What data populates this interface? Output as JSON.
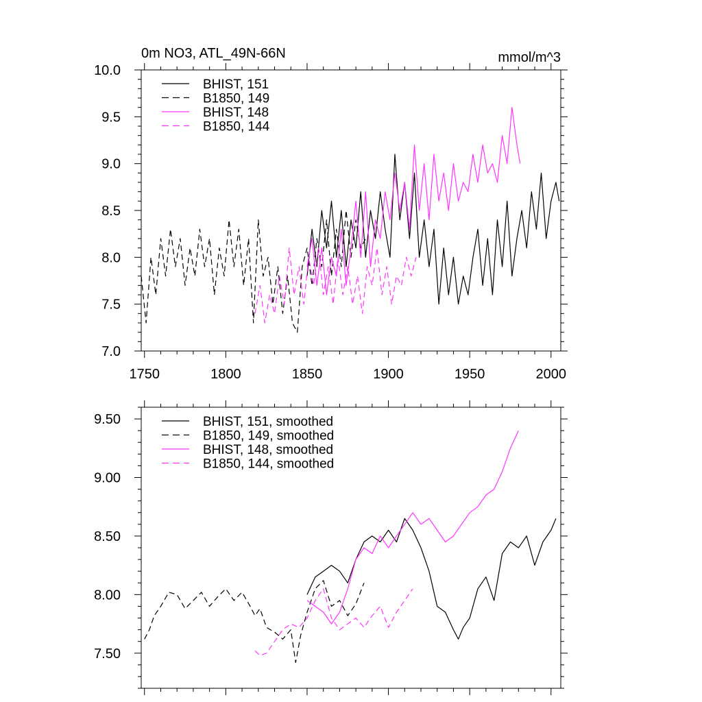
{
  "chart_data": [
    {
      "type": "line",
      "title": "0m NO3, ATL_49N-66N",
      "units": "mmol/m^3",
      "xlabel": "",
      "ylabel": "",
      "xlim": [
        1748,
        2006
      ],
      "ylim": [
        7.0,
        10.0
      ],
      "xticks": [
        {
          "v": 1750,
          "label": "1750"
        },
        {
          "v": 1800,
          "label": "1800"
        },
        {
          "v": 1850,
          "label": "1850"
        },
        {
          "v": 1900,
          "label": "1900"
        },
        {
          "v": 1950,
          "label": "1950"
        },
        {
          "v": 2000,
          "label": "2000"
        }
      ],
      "yticks": [
        {
          "v": 7.0,
          "label": "7.0"
        },
        {
          "v": 7.5,
          "label": "7.5"
        },
        {
          "v": 8.0,
          "label": "8.0"
        },
        {
          "v": 8.5,
          "label": "8.5"
        },
        {
          "v": 9.0,
          "label": "9.0"
        },
        {
          "v": 9.5,
          "label": "9.5"
        },
        {
          "v": 10.0,
          "label": "10.0"
        }
      ],
      "legend_position": "top-left",
      "grid": false,
      "series": [
        {
          "name": "BHIST, 151",
          "color": "#000000",
          "dash": "solid",
          "x": [
            1850,
            1853,
            1856,
            1859,
            1862,
            1865,
            1868,
            1871,
            1874,
            1877,
            1880,
            1883,
            1886,
            1889,
            1892,
            1895,
            1898,
            1901,
            1904,
            1907,
            1910,
            1913,
            1916,
            1919,
            1922,
            1925,
            1928,
            1931,
            1934,
            1937,
            1940,
            1943,
            1946,
            1949,
            1952,
            1955,
            1958,
            1961,
            1964,
            1967,
            1970,
            1973,
            1976,
            1979,
            1982,
            1985,
            1988,
            1991,
            1994,
            1997,
            2000,
            2003,
            2005
          ],
          "y": [
            7.8,
            8.3,
            7.9,
            8.5,
            8.1,
            8.6,
            8.0,
            8.5,
            7.9,
            8.4,
            8.1,
            8.7,
            8.0,
            8.5,
            8.2,
            8.7,
            8.3,
            8.0,
            9.1,
            8.4,
            8.8,
            8.2,
            8.9,
            8.0,
            8.4,
            7.9,
            8.3,
            7.5,
            8.1,
            7.6,
            8.0,
            7.5,
            7.8,
            7.6,
            8.0,
            8.3,
            7.7,
            8.2,
            7.6,
            8.4,
            7.9,
            8.6,
            7.8,
            8.2,
            8.5,
            8.1,
            8.7,
            8.3,
            8.9,
            8.2,
            8.6,
            8.8,
            8.6
          ]
        },
        {
          "name": "B1850, 149",
          "color": "#000000",
          "dash": "dashed",
          "x": [
            1748,
            1751,
            1754,
            1757,
            1760,
            1763,
            1766,
            1769,
            1772,
            1775,
            1778,
            1781,
            1784,
            1787,
            1790,
            1793,
            1796,
            1799,
            1802,
            1805,
            1808,
            1811,
            1814,
            1817,
            1820,
            1823,
            1826,
            1829,
            1832,
            1835,
            1838,
            1841,
            1844,
            1847,
            1850,
            1853,
            1856,
            1859,
            1862,
            1865,
            1868,
            1871,
            1874,
            1877,
            1880,
            1883,
            1886
          ],
          "y": [
            7.8,
            7.3,
            8.0,
            7.6,
            8.2,
            7.8,
            8.3,
            7.9,
            8.2,
            7.7,
            8.1,
            7.8,
            8.3,
            7.9,
            8.2,
            7.6,
            8.1,
            7.8,
            8.4,
            7.9,
            8.3,
            7.7,
            8.2,
            7.3,
            8.4,
            7.8,
            8.0,
            7.5,
            7.9,
            7.4,
            7.8,
            7.3,
            7.2,
            7.9,
            8.1,
            7.7,
            8.2,
            7.9,
            8.4,
            7.8,
            8.3,
            7.9,
            8.5,
            8.0,
            8.4,
            8.1,
            8.2
          ]
        },
        {
          "name": "BHIST, 148",
          "color": "#ff33ff",
          "dash": "solid",
          "x": [
            1850,
            1853,
            1856,
            1859,
            1862,
            1865,
            1868,
            1871,
            1874,
            1877,
            1880,
            1883,
            1886,
            1889,
            1892,
            1895,
            1898,
            1901,
            1904,
            1907,
            1910,
            1913,
            1916,
            1919,
            1922,
            1925,
            1928,
            1931,
            1934,
            1937,
            1940,
            1943,
            1946,
            1949,
            1952,
            1955,
            1958,
            1961,
            1964,
            1967,
            1970,
            1973,
            1976,
            1979,
            1981
          ],
          "y": [
            7.9,
            8.2,
            7.7,
            8.1,
            7.6,
            8.0,
            7.8,
            8.3,
            7.7,
            8.1,
            8.6,
            8.0,
            8.7,
            7.9,
            8.4,
            8.2,
            8.7,
            8.4,
            8.9,
            8.5,
            8.8,
            8.3,
            9.2,
            8.5,
            9.0,
            8.4,
            9.1,
            8.6,
            8.9,
            8.5,
            9.0,
            8.6,
            8.8,
            8.7,
            9.1,
            8.8,
            9.2,
            8.9,
            9.0,
            8.8,
            9.3,
            9.0,
            9.6,
            9.2,
            9.0
          ]
        },
        {
          "name": "B1850, 144",
          "color": "#ff33ff",
          "dash": "dashed",
          "x": [
            1818,
            1821,
            1824,
            1827,
            1830,
            1833,
            1836,
            1839,
            1842,
            1845,
            1848,
            1851,
            1854,
            1857,
            1860,
            1863,
            1866,
            1869,
            1872,
            1875,
            1878,
            1881,
            1884,
            1887,
            1890,
            1893,
            1896,
            1899,
            1902,
            1905,
            1908,
            1911,
            1914,
            1917
          ],
          "y": [
            7.4,
            7.7,
            7.3,
            7.6,
            7.4,
            7.8,
            7.5,
            8.1,
            7.6,
            7.9,
            7.5,
            8.0,
            7.7,
            8.1,
            7.6,
            7.9,
            7.5,
            8.0,
            7.6,
            7.9,
            7.5,
            7.8,
            7.4,
            7.9,
            7.7,
            8.1,
            7.6,
            7.9,
            7.5,
            7.8,
            7.7,
            8.0,
            7.8,
            8.0
          ]
        }
      ]
    },
    {
      "type": "line",
      "title": "",
      "xlabel": "",
      "ylabel": "",
      "xlim": [
        1748,
        2006
      ],
      "ylim": [
        7.2,
        9.6
      ],
      "xticks": [
        {
          "v": 1750,
          "label": ""
        },
        {
          "v": 1800,
          "label": ""
        },
        {
          "v": 1850,
          "label": ""
        },
        {
          "v": 1900,
          "label": ""
        },
        {
          "v": 1950,
          "label": ""
        },
        {
          "v": 2000,
          "label": ""
        }
      ],
      "yticks": [
        {
          "v": 7.5,
          "label": "7.50"
        },
        {
          "v": 8.0,
          "label": "8.00"
        },
        {
          "v": 8.5,
          "label": "8.50"
        },
        {
          "v": 9.0,
          "label": "9.00"
        },
        {
          "v": 9.5,
          "label": "9.50"
        }
      ],
      "legend_position": "top-left",
      "grid": false,
      "series": [
        {
          "name": "BHIST, 151, smoothed",
          "color": "#000000",
          "dash": "solid",
          "x": [
            1850,
            1855,
            1860,
            1865,
            1870,
            1875,
            1880,
            1885,
            1890,
            1895,
            1900,
            1905,
            1910,
            1915,
            1920,
            1925,
            1930,
            1935,
            1940,
            1943,
            1946,
            1950,
            1955,
            1960,
            1965,
            1970,
            1975,
            1980,
            1985,
            1990,
            1995,
            2000,
            2003
          ],
          "y": [
            8.0,
            8.15,
            8.2,
            8.25,
            8.2,
            8.1,
            8.3,
            8.45,
            8.5,
            8.45,
            8.55,
            8.45,
            8.65,
            8.55,
            8.4,
            8.2,
            7.9,
            7.85,
            7.7,
            7.62,
            7.72,
            7.8,
            8.05,
            8.15,
            7.95,
            8.35,
            8.45,
            8.4,
            8.5,
            8.25,
            8.45,
            8.55,
            8.65
          ]
        },
        {
          "name": "B1850, 149, smoothed",
          "color": "#000000",
          "dash": "dashed",
          "x": [
            1750,
            1753,
            1756,
            1760,
            1765,
            1770,
            1775,
            1780,
            1785,
            1790,
            1795,
            1800,
            1805,
            1810,
            1815,
            1818,
            1821,
            1825,
            1830,
            1835,
            1840,
            1843,
            1846,
            1850,
            1855,
            1860,
            1865,
            1870,
            1875,
            1880,
            1885
          ],
          "y": [
            7.62,
            7.7,
            7.82,
            7.9,
            8.02,
            8.0,
            7.88,
            7.95,
            8.02,
            7.9,
            7.98,
            8.05,
            7.95,
            8.02,
            7.9,
            7.82,
            7.88,
            7.72,
            7.68,
            7.62,
            7.7,
            7.42,
            7.65,
            7.85,
            8.05,
            8.12,
            7.9,
            7.95,
            7.82,
            7.92,
            8.1
          ]
        },
        {
          "name": "BHIST, 148, smoothed",
          "color": "#ff33ff",
          "dash": "solid",
          "x": [
            1850,
            1855,
            1860,
            1865,
            1870,
            1875,
            1880,
            1885,
            1890,
            1895,
            1900,
            1905,
            1910,
            1915,
            1920,
            1925,
            1930,
            1935,
            1940,
            1945,
            1950,
            1955,
            1960,
            1965,
            1970,
            1975,
            1980
          ],
          "y": [
            7.95,
            7.9,
            7.85,
            7.75,
            7.85,
            8.05,
            8.3,
            8.4,
            8.35,
            8.5,
            8.4,
            8.5,
            8.6,
            8.7,
            8.6,
            8.65,
            8.55,
            8.45,
            8.5,
            8.6,
            8.7,
            8.75,
            8.85,
            8.9,
            9.05,
            9.25,
            9.4
          ]
        },
        {
          "name": "B1850, 144, smoothed",
          "color": "#ff33ff",
          "dash": "dashed",
          "x": [
            1818,
            1821,
            1825,
            1830,
            1835,
            1840,
            1845,
            1850,
            1855,
            1860,
            1865,
            1870,
            1875,
            1880,
            1885,
            1890,
            1895,
            1900,
            1905,
            1910,
            1915
          ],
          "y": [
            7.52,
            7.48,
            7.5,
            7.6,
            7.7,
            7.75,
            7.72,
            7.8,
            7.95,
            8.05,
            7.8,
            7.7,
            7.75,
            7.8,
            7.72,
            7.82,
            7.9,
            7.72,
            7.85,
            7.95,
            8.05
          ]
        }
      ]
    }
  ]
}
